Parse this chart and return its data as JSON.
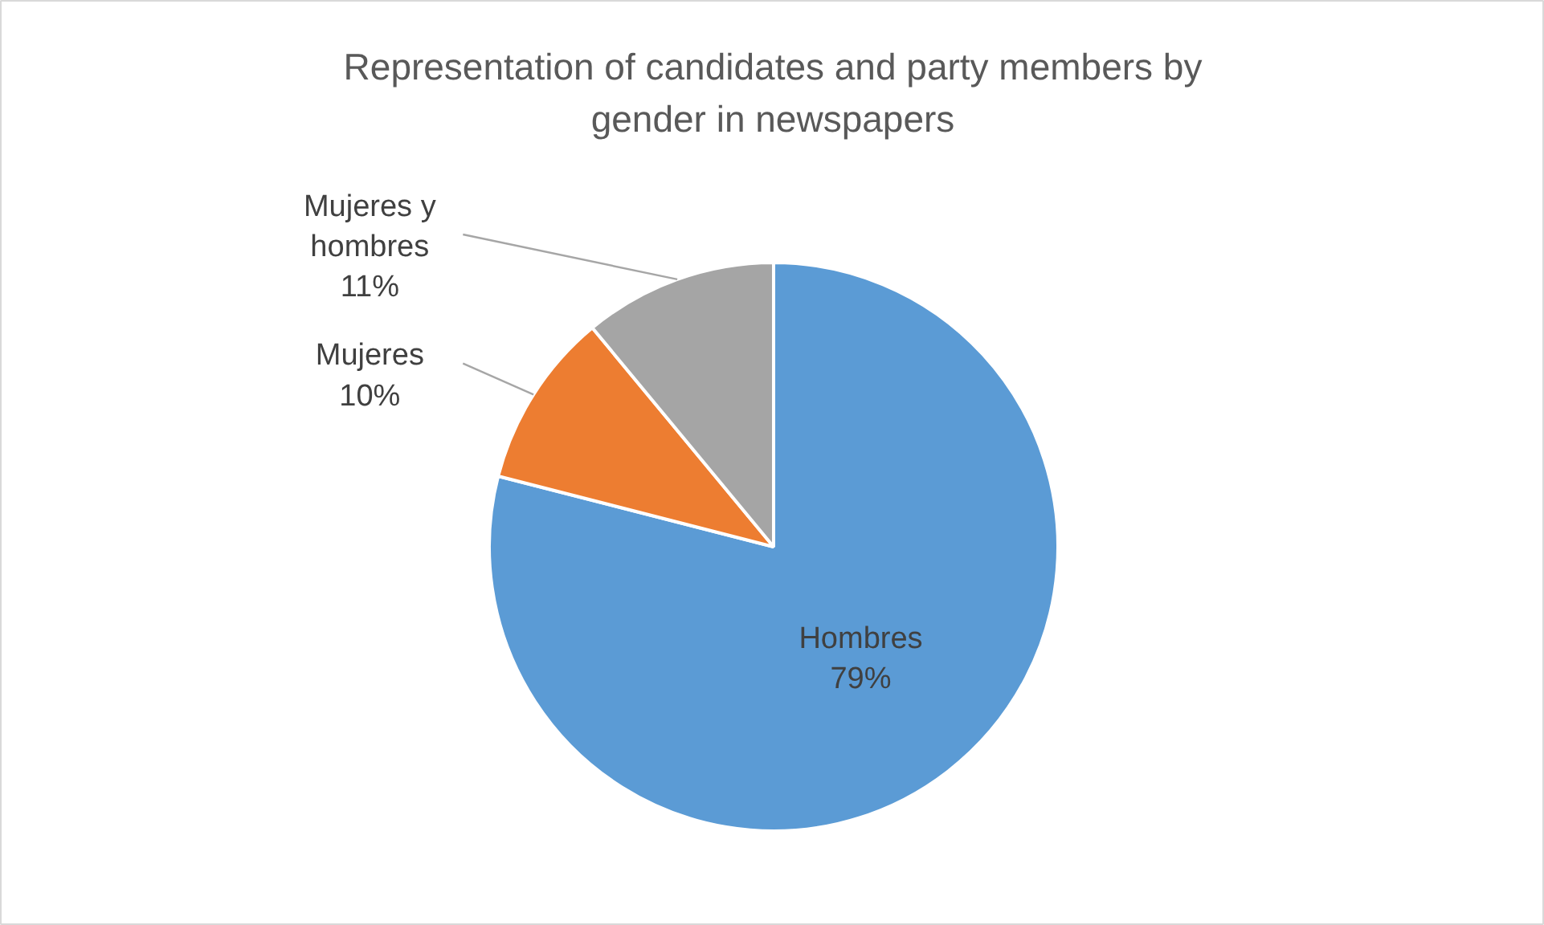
{
  "chart_data": {
    "type": "pie",
    "title": "Representation of candidates and party members by gender in newspapers",
    "categories": [
      "Hombres",
      "Mujeres",
      "Mujeres y hombres"
    ],
    "values": [
      79,
      10,
      11
    ],
    "colors": [
      "#5b9bd5",
      "#ed7d31",
      "#a5a5a5"
    ],
    "value_labels": [
      "79%",
      "10%",
      "11%"
    ]
  }
}
